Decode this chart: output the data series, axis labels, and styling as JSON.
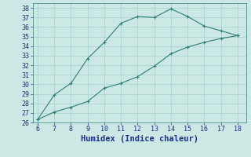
{
  "xlabel": "Humidex (Indice chaleur)",
  "ylabel": "",
  "background_color": "#cce8e4",
  "grid_color": "#aad4d0",
  "line_color": "#2e7d72",
  "x_upper": [
    6,
    7,
    8,
    9,
    10,
    11,
    12,
    13,
    14,
    15,
    16,
    17,
    18
  ],
  "y_upper": [
    26.3,
    28.9,
    30.1,
    32.7,
    34.4,
    36.4,
    37.1,
    37.0,
    37.9,
    37.1,
    36.1,
    35.6,
    35.1
  ],
  "x_lower": [
    6,
    7,
    8,
    9,
    10,
    11,
    12,
    13,
    14,
    15,
    16,
    17,
    18
  ],
  "y_lower": [
    26.3,
    27.1,
    27.6,
    28.2,
    29.6,
    30.1,
    30.8,
    31.9,
    33.2,
    33.9,
    34.4,
    34.8,
    35.1
  ],
  "xlim": [
    5.7,
    18.5
  ],
  "ylim": [
    26,
    38.5
  ],
  "xticks": [
    6,
    7,
    8,
    9,
    10,
    11,
    12,
    13,
    14,
    15,
    16,
    17,
    18
  ],
  "yticks": [
    26,
    27,
    28,
    29,
    30,
    31,
    32,
    33,
    34,
    35,
    36,
    37,
    38
  ],
  "tick_fontsize": 6,
  "xlabel_fontsize": 7.5,
  "marker_size": 3.5
}
